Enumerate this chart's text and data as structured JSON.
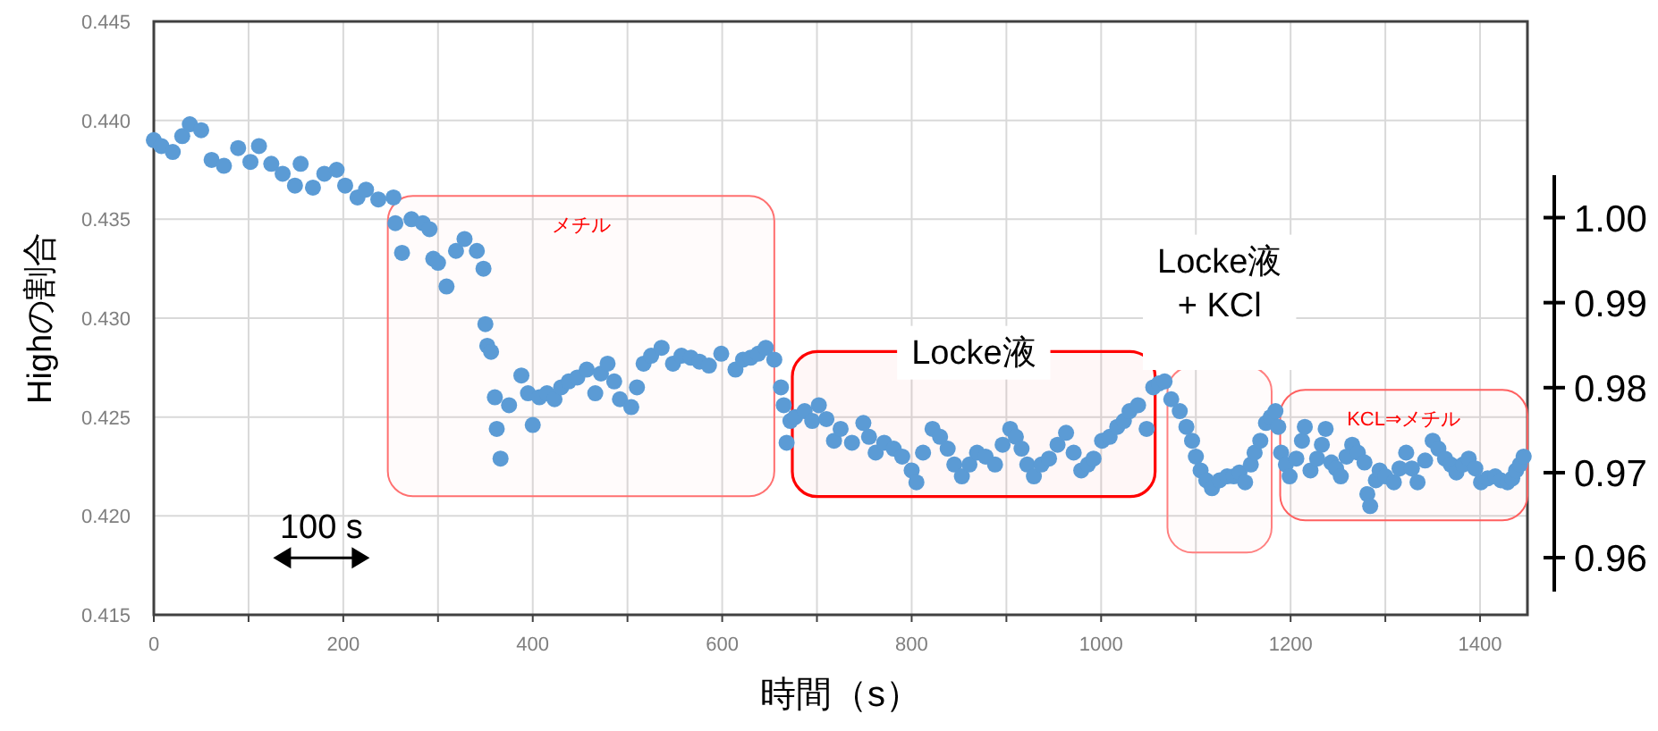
{
  "chart_data": {
    "type": "scatter",
    "xlabel": "時間（s）",
    "ylabel": "Highの割合",
    "color": "#5b9bd5",
    "marker": "circle",
    "grid": true,
    "xlim": [
      0,
      1450
    ],
    "xticks": [
      0,
      {
        "value": 100,
        "label": null
      },
      200,
      {
        "value": 300,
        "label": null
      },
      400,
      {
        "value": 500,
        "label": null
      },
      600,
      {
        "value": 700,
        "label": null
      },
      800,
      {
        "value": 900,
        "label": null
      },
      1000,
      {
        "value": 1100,
        "label": null
      },
      1200,
      {
        "value": 1300,
        "label": null
      },
      1400
    ],
    "ylim": [
      0.415,
      0.445
    ],
    "yticks": [
      0.415,
      {
        "value": 0.42,
        "label": "0.420"
      },
      0.425,
      {
        "value": 0.43,
        "label": "0.430"
      },
      0.435,
      {
        "value": 0.44,
        "label": "0.440"
      },
      0.445
    ],
    "y2lim": [
      0.956,
      1.005
    ],
    "y2ticks": [
      0.96,
      0.97,
      0.98,
      0.99,
      {
        "value": 1,
        "label": "1.00"
      }
    ],
    "x": [
      0,
      8,
      20,
      30,
      38,
      50,
      61,
      74,
      89,
      102,
      111,
      124,
      136,
      149,
      155,
      168,
      180,
      193,
      202,
      215,
      224,
      237,
      253,
      255,
      262,
      272,
      284,
      291,
      295,
      300,
      309,
      319,
      328,
      341,
      348,
      350,
      352,
      356,
      360,
      362,
      366,
      375,
      388,
      395,
      400,
      407,
      415,
      423,
      430,
      438,
      447,
      457,
      466,
      472,
      479,
      486,
      492,
      504,
      510,
      517,
      525,
      536,
      548,
      557,
      567,
      576,
      586,
      599,
      614,
      622,
      630,
      638,
      646,
      655,
      662,
      665,
      668,
      672,
      677,
      687,
      695,
      702,
      710,
      718,
      725,
      737,
      749,
      755,
      762,
      771,
      781,
      790,
      800,
      805,
      812,
      822,
      830,
      838,
      845,
      853,
      861,
      869,
      878,
      888,
      896,
      904,
      910,
      916,
      922,
      929,
      937,
      945,
      954,
      963,
      971,
      979,
      986,
      992,
      1001,
      1009,
      1017,
      1024,
      1030,
      1039,
      1048,
      1055,
      1061,
      1067,
      1074,
      1083,
      1090,
      1096,
      1100,
      1105,
      1111,
      1117,
      1125,
      1133,
      1140,
      1146,
      1152,
      1158,
      1162,
      1168,
      1174,
      1179,
      1184,
      1187,
      1190,
      1195,
      1199,
      1206,
      1212,
      1215,
      1221,
      1228,
      1233,
      1237,
      1243,
      1248,
      1253,
      1259,
      1265,
      1271,
      1278,
      1281,
      1284,
      1290,
      1294,
      1300,
      1309,
      1315,
      1322,
      1328,
      1334,
      1342,
      1350,
      1356,
      1363,
      1369,
      1375,
      1382,
      1388,
      1395,
      1401,
      1408,
      1416,
      1422,
      1429,
      1434,
      1438,
      1442,
      1446
    ],
    "values": [
      0.439,
      0.4387,
      0.4384,
      0.4392,
      0.4398,
      0.4395,
      0.438,
      0.4377,
      0.4386,
      0.4379,
      0.4387,
      0.4378,
      0.4373,
      0.4367,
      0.4378,
      0.4366,
      0.4373,
      0.4375,
      0.4367,
      0.4361,
      0.4365,
      0.436,
      0.4361,
      0.4348,
      0.4333,
      0.435,
      0.4348,
      0.4345,
      0.433,
      0.4328,
      0.4316,
      0.4334,
      0.434,
      0.4334,
      0.4325,
      0.4297,
      0.4286,
      0.4283,
      0.426,
      0.4244,
      0.4229,
      0.4256,
      0.4271,
      0.4262,
      0.4246,
      0.426,
      0.4262,
      0.4259,
      0.4265,
      0.4268,
      0.427,
      0.4274,
      0.4262,
      0.4272,
      0.4277,
      0.4268,
      0.4259,
      0.4255,
      0.4265,
      0.4277,
      0.4281,
      0.4285,
      0.4277,
      0.4281,
      0.428,
      0.4278,
      0.4276,
      0.4282,
      0.4274,
      0.4279,
      0.428,
      0.4282,
      0.4285,
      0.4279,
      0.4265,
      0.4256,
      0.4237,
      0.4248,
      0.425,
      0.4253,
      0.4248,
      0.4256,
      0.4249,
      0.4238,
      0.4244,
      0.4237,
      0.4247,
      0.424,
      0.4232,
      0.4237,
      0.4234,
      0.423,
      0.4223,
      0.4217,
      0.4232,
      0.4244,
      0.424,
      0.4234,
      0.4226,
      0.422,
      0.4226,
      0.4232,
      0.423,
      0.4226,
      0.4236,
      0.4244,
      0.424,
      0.4234,
      0.4226,
      0.422,
      0.4226,
      0.4229,
      0.4236,
      0.4242,
      0.4232,
      0.4223,
      0.4226,
      0.4229,
      0.4238,
      0.424,
      0.4245,
      0.4248,
      0.4253,
      0.4256,
      0.4244,
      0.4265,
      0.4267,
      0.4268,
      0.4259,
      0.4253,
      0.4245,
      0.4238,
      0.423,
      0.4223,
      0.4218,
      0.4214,
      0.4218,
      0.422,
      0.422,
      0.4222,
      0.4217,
      0.4226,
      0.4232,
      0.4238,
      0.4247,
      0.425,
      0.4253,
      0.4245,
      0.4232,
      0.4226,
      0.422,
      0.4229,
      0.4238,
      0.4245,
      0.4223,
      0.4229,
      0.4236,
      0.4244,
      0.4227,
      0.4224,
      0.422,
      0.423,
      0.4236,
      0.4232,
      0.4227,
      0.4211,
      0.4205,
      0.4218,
      0.4223,
      0.422,
      0.4217,
      0.4224,
      0.4232,
      0.4224,
      0.4217,
      0.4228,
      0.4238,
      0.4234,
      0.4229,
      0.4226,
      0.4222,
      0.4226,
      0.4229,
      0.4224,
      0.4217,
      0.4219,
      0.422,
      0.4218,
      0.4217,
      0.4219,
      0.4223,
      0.4226,
      0.423
    ],
    "bands": [
      {
        "axis": "x",
        "from": 247,
        "to": 655,
        "label": "メチル",
        "color": "#ff7070"
      },
      {
        "axis": "x",
        "from": 674,
        "to": 1057,
        "label": "Locke液",
        "color": "#ff0000"
      },
      {
        "axis": "x",
        "from": 1070,
        "to": 1180,
        "label": "Locke液\n+ KCl",
        "color": "#ff8080"
      },
      {
        "axis": "x",
        "from": 1189,
        "to": 1450,
        "label": "KCL⇒メチル",
        "color": "#ff6060"
      }
    ],
    "annotations": [
      "100 s"
    ]
  }
}
